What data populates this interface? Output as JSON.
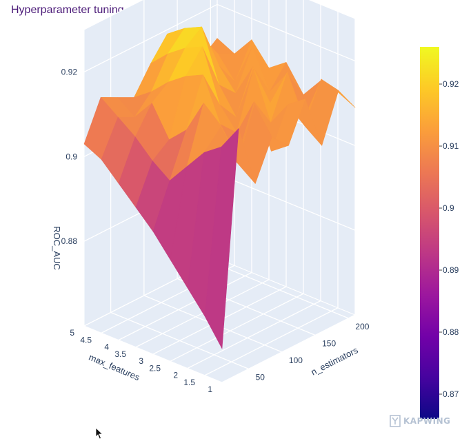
{
  "header": {
    "title": "Hyperparameter tuning"
  },
  "chart_data": {
    "type": "surface",
    "title": "Hyperparameter tuning",
    "xlabel": "n_estimators",
    "ylabel": "max_features",
    "zlabel": "ROC_AUC",
    "x": [
      10,
      35,
      60,
      85,
      110,
      135,
      160,
      185,
      210
    ],
    "y": [
      1,
      1.5,
      2,
      2.5,
      3,
      3.5,
      4,
      4.5,
      5
    ],
    "z": [
      [
        0.868,
        0.918,
        0.903,
        0.912,
        0.908,
        0.917,
        0.904,
        0.915,
        0.909
      ],
      [
        0.874,
        0.912,
        0.906,
        0.918,
        0.905,
        0.914,
        0.907,
        0.916,
        0.911
      ],
      [
        0.879,
        0.909,
        0.913,
        0.904,
        0.915,
        0.908,
        0.918,
        0.905,
        0.912
      ],
      [
        0.884,
        0.904,
        0.917,
        0.91,
        0.906,
        0.919,
        0.909,
        0.914,
        0.907
      ],
      [
        0.889,
        0.899,
        0.909,
        0.92,
        0.911,
        0.906,
        0.916,
        0.908,
        0.913
      ],
      [
        0.893,
        0.902,
        0.905,
        0.918,
        0.923,
        0.912,
        0.908,
        0.917,
        0.91
      ],
      [
        0.897,
        0.906,
        0.912,
        0.915,
        0.921,
        0.924,
        0.913,
        0.907,
        0.915
      ],
      [
        0.901,
        0.909,
        0.907,
        0.911,
        0.918,
        0.922,
        0.918,
        0.912,
        0.91
      ],
      [
        0.903,
        0.912,
        0.91,
        0.908,
        0.914,
        0.919,
        0.915,
        0.909,
        0.912
      ]
    ],
    "xticks": [
      50,
      100,
      150,
      200
    ],
    "yticks": [
      1,
      1.5,
      2,
      2.5,
      3,
      3.5,
      4,
      4.5,
      5
    ],
    "zticks": [
      0.88,
      0.9,
      0.92
    ],
    "zrange": [
      0.86,
      0.93
    ],
    "colorbar": {
      "range": [
        0.866,
        0.926
      ],
      "ticks": [
        0.87,
        0.88,
        0.89,
        0.9,
        0.91,
        0.92
      ]
    },
    "colorscale": [
      "#0d0887",
      "#46039f",
      "#7201a8",
      "#9c179e",
      "#bd3786",
      "#d8576b",
      "#ed7953",
      "#fb9f3a",
      "#fdca26",
      "#f0f921"
    ],
    "grid": true,
    "legend": "none"
  },
  "watermark": {
    "text": "KAPWING"
  }
}
